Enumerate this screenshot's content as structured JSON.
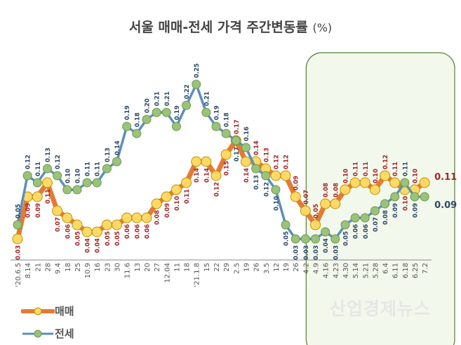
{
  "chart_data": {
    "type": "line",
    "title": "서울 매매-전세 가격 주간변동률",
    "unit": "(%)",
    "xlabel": "",
    "ylabel": "",
    "ylim": [
      0,
      0.26
    ],
    "grid": false,
    "legend_position": "bottom-left",
    "categories": [
      "'20.6.5",
      "8.14",
      "21",
      "28",
      "9.4",
      "18",
      "25",
      "10.9",
      "16",
      "23",
      "30",
      "11.6",
      "13",
      "20",
      "27",
      "12.04",
      "11",
      "18",
      "'21.1.8",
      "15",
      "22",
      "29",
      "2.5",
      "19",
      "26",
      "3.5",
      "12",
      "19",
      "26",
      "4.2",
      "4.9",
      "4.16",
      "4.23",
      "4.30",
      "5.14",
      "5.21",
      "5.28",
      "6.4",
      "6.11",
      "6.18",
      "6.25",
      "7.2"
    ],
    "series": [
      {
        "name": "매매",
        "color": "#e47b34",
        "marker_color": "#ffd966",
        "values": [
          0.03,
          0.09,
          0.09,
          0.11,
          0.07,
          0.06,
          0.05,
          0.04,
          0.04,
          0.05,
          0.05,
          0.06,
          0.06,
          0.06,
          0.08,
          0.09,
          0.1,
          0.11,
          0.14,
          0.14,
          0.12,
          0.15,
          0.17,
          0.14,
          0.14,
          0.13,
          0.12,
          0.12,
          0.09,
          0.07,
          0.05,
          0.08,
          0.08,
          0.1,
          0.11,
          0.11,
          0.1,
          0.12,
          0.11,
          0.1,
          0.1,
          0.11
        ]
      },
      {
        "name": "전세",
        "color": "#5b8fbf",
        "marker_color": "#9bc27a",
        "values": [
          0.05,
          0.12,
          0.11,
          0.13,
          0.12,
          0.1,
          0.1,
          0.11,
          0.11,
          0.13,
          0.14,
          0.19,
          0.18,
          0.2,
          0.21,
          0.21,
          0.19,
          0.22,
          0.25,
          0.21,
          0.19,
          0.18,
          0.17,
          0.16,
          0.13,
          0.12,
          0.1,
          0.05,
          0.03,
          0.03,
          0.03,
          0.04,
          0.03,
          0.05,
          0.06,
          0.06,
          0.07,
          0.08,
          0.09,
          0.11,
          0.09,
          0.09
        ]
      }
    ],
    "highlight_range": [
      "4.2",
      "7.2"
    ],
    "highlight_color": "#f3f8ec"
  },
  "watermark": "산업경제뉴스"
}
